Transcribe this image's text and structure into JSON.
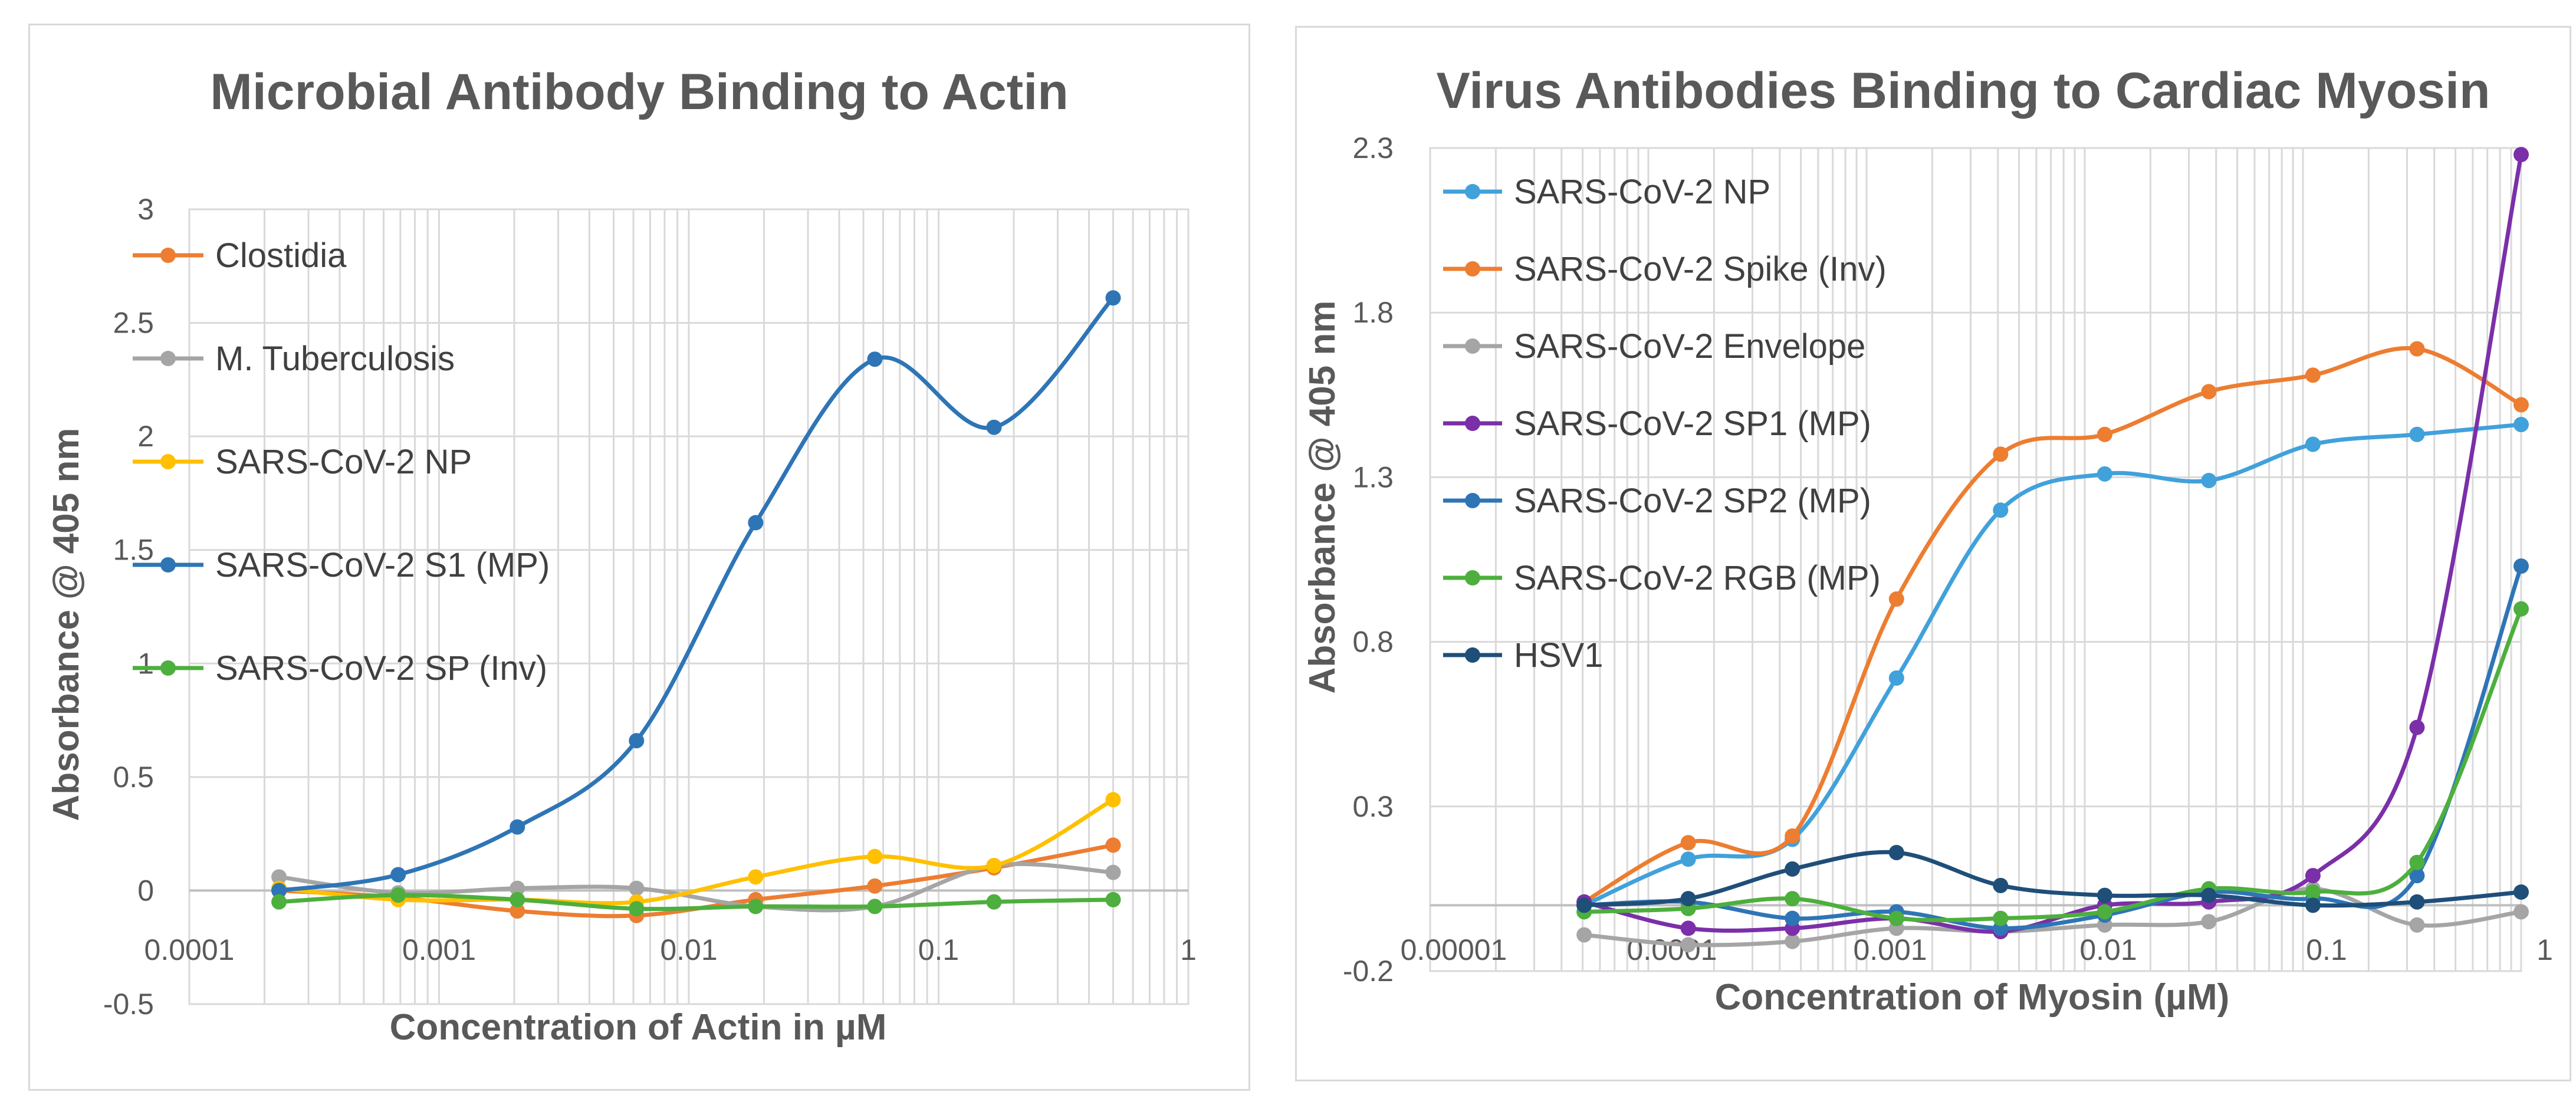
{
  "chart_data": [
    {
      "type": "line",
      "title": "Microbial Antibody Binding to Actin",
      "xlabel": "Concentration of Actin in µM",
      "ylabel": "Absorbance @ 405 nm",
      "x_scale": "log",
      "xlim": [
        0.0001,
        1
      ],
      "ylim": [
        -0.5,
        3
      ],
      "x_ticks": [
        0.0001,
        0.001,
        0.01,
        0.1,
        1
      ],
      "x_tick_labels": [
        "0.0001",
        "0.001",
        "0.01",
        "0.1",
        "1"
      ],
      "y_ticks": [
        -0.5,
        0,
        0.5,
        1,
        1.5,
        2,
        2.5,
        3
      ],
      "y_tick_labels": [
        "-0.5",
        "0",
        "0.5",
        "1",
        "1.5",
        "2",
        "2.5",
        "3"
      ],
      "legend": "top-left",
      "series": [
        {
          "name": "Clostidia",
          "color": "#ED7D31",
          "x": [
            0.0002286,
            0.000686,
            0.002058,
            0.006173,
            0.01852,
            0.05556,
            0.1667,
            0.5
          ],
          "y": [
            0.0,
            -0.03,
            -0.09,
            -0.11,
            -0.04,
            0.02,
            0.1,
            0.2
          ]
        },
        {
          "name": "M. Tuberculosis",
          "color": "#A5A5A5",
          "x": [
            0.0002286,
            0.000686,
            0.002058,
            0.006173,
            0.01852,
            0.05556,
            0.1667,
            0.5
          ],
          "y": [
            0.06,
            -0.01,
            0.01,
            0.01,
            -0.07,
            -0.07,
            0.11,
            0.08
          ]
        },
        {
          "name": "SARS-CoV-2  NP",
          "color": "#FFC000",
          "x": [
            0.0002286,
            0.000686,
            0.002058,
            0.006173,
            0.01852,
            0.05556,
            0.1667,
            0.5
          ],
          "y": [
            0.01,
            -0.04,
            -0.04,
            -0.05,
            0.06,
            0.15,
            0.11,
            0.4
          ]
        },
        {
          "name": "SARS-CoV-2 S1 (MP)",
          "color": "#2E75B6",
          "x": [
            0.0002286,
            0.000686,
            0.002058,
            0.006173,
            0.01852,
            0.05556,
            0.1667,
            0.5
          ],
          "y": [
            0.0,
            0.07,
            0.28,
            0.66,
            1.62,
            2.34,
            2.04,
            2.61
          ]
        },
        {
          "name": "SARS-CoV-2 SP (Inv)",
          "color": "#4DAF3D",
          "x": [
            0.0002286,
            0.000686,
            0.002058,
            0.006173,
            0.01852,
            0.05556,
            0.1667,
            0.5
          ],
          "y": [
            -0.05,
            -0.02,
            -0.04,
            -0.08,
            -0.07,
            -0.07,
            -0.05,
            -0.04
          ]
        }
      ]
    },
    {
      "type": "line",
      "title": "Virus Antibodies Binding to Cardiac Myosin",
      "xlabel": "Concentration of Myosin (µM)",
      "ylabel": "Absorbance @ 405 nm",
      "x_scale": "log",
      "xlim": [
        1e-05,
        1
      ],
      "ylim": [
        -0.2,
        2.3
      ],
      "x_ticks": [
        1e-05,
        0.0001,
        0.001,
        0.01,
        0.1,
        1
      ],
      "x_tick_labels": [
        "0.00001",
        "0.0001",
        "0.001",
        "0.01",
        "0.1",
        "1"
      ],
      "y_ticks": [
        -0.2,
        0.3,
        0.8,
        1.3,
        1.8,
        2.3
      ],
      "y_tick_labels": [
        "-0.2",
        "0.3",
        "0.8",
        "1.3",
        "1.8",
        "2.3"
      ],
      "legend": "top-left",
      "series": [
        {
          "name": "SARS-CoV-2 NP",
          "color": "#41A1DB",
          "x": [
            5.08e-05,
            0.0001524,
            0.0004572,
            0.001372,
            0.004115,
            0.01235,
            0.03704,
            0.1111,
            0.3333,
            1
          ],
          "y": [
            0.0,
            0.14,
            0.2,
            0.69,
            1.2,
            1.31,
            1.29,
            1.4,
            1.43,
            1.46
          ]
        },
        {
          "name": "SARS-CoV-2 Spike (Inv)",
          "color": "#ED7D31",
          "x": [
            5.08e-05,
            0.0001524,
            0.0004572,
            0.001372,
            0.004115,
            0.01235,
            0.03704,
            0.1111,
            0.3333,
            1
          ],
          "y": [
            0.01,
            0.19,
            0.21,
            0.93,
            1.37,
            1.43,
            1.56,
            1.61,
            1.69,
            1.52
          ]
        },
        {
          "name": "SARS-CoV-2 Envelope",
          "color": "#A5A5A5",
          "x": [
            5.08e-05,
            0.0001524,
            0.0004572,
            0.001372,
            0.004115,
            0.01235,
            0.03704,
            0.1111,
            0.3333,
            1
          ],
          "y": [
            -0.09,
            -0.12,
            -0.11,
            -0.07,
            -0.08,
            -0.06,
            -0.05,
            0.05,
            -0.06,
            -0.02
          ]
        },
        {
          "name": "SARS-CoV-2 SP1 (MP)",
          "color": "#7B2FA8",
          "x": [
            5.08e-05,
            0.0001524,
            0.0004572,
            0.001372,
            0.004115,
            0.01235,
            0.03704,
            0.1111,
            0.3333,
            1
          ],
          "y": [
            0.01,
            -0.07,
            -0.07,
            -0.04,
            -0.08,
            0.0,
            0.01,
            0.09,
            0.54,
            2.28
          ]
        },
        {
          "name": "SARS-CoV-2 SP2 (MP)",
          "color": "#2E75B6",
          "x": [
            5.08e-05,
            0.0001524,
            0.0004572,
            0.001372,
            0.004115,
            0.01235,
            0.03704,
            0.1111,
            0.3333,
            1
          ],
          "y": [
            0.0,
            0.01,
            -0.04,
            -0.02,
            -0.07,
            -0.03,
            0.04,
            0.02,
            0.09,
            1.03
          ]
        },
        {
          "name": "SARS-CoV-2 RGB (MP)",
          "color": "#4DAF3D",
          "x": [
            5.08e-05,
            0.0001524,
            0.0004572,
            0.001372,
            0.004115,
            0.01235,
            0.03704,
            0.1111,
            0.3333,
            1
          ],
          "y": [
            -0.02,
            -0.01,
            0.02,
            -0.04,
            -0.04,
            -0.02,
            0.05,
            0.04,
            0.13,
            0.9
          ]
        },
        {
          "name": "HSV1",
          "color": "#1F4E79",
          "x": [
            5.08e-05,
            0.0001524,
            0.0004572,
            0.001372,
            0.004115,
            0.01235,
            0.03704,
            0.1111,
            0.3333,
            1
          ],
          "y": [
            0.0,
            0.02,
            0.11,
            0.16,
            0.06,
            0.03,
            0.03,
            0.0,
            0.01,
            0.04
          ]
        }
      ]
    }
  ]
}
